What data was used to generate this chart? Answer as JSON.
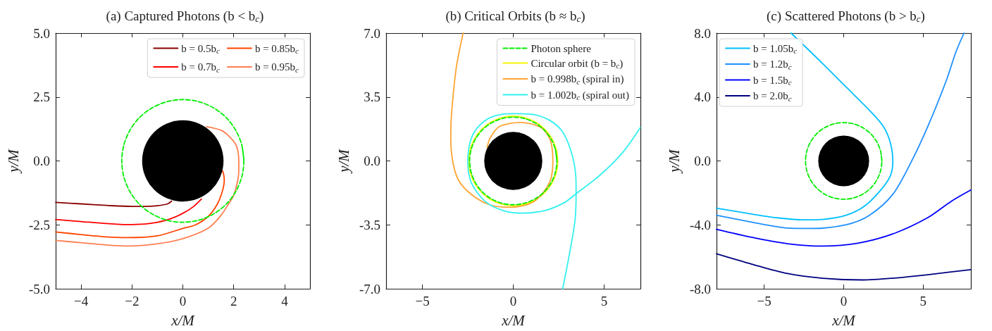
{
  "chart_data": [
    {
      "type": "line",
      "title": "(a) Captured Photons (b < b$_{c}$)",
      "xlabel": "x/M",
      "ylabel": "y/M",
      "xlim": [
        -5,
        5
      ],
      "ylim": [
        -5,
        5
      ],
      "xticks": [
        {
          "value": -4,
          "label": "−4"
        },
        {
          "value": -2,
          "label": "−2"
        },
        0,
        2,
        4
      ],
      "yticks": [
        {
          "value": -5,
          "label": "-5.0"
        },
        {
          "value": -2.5,
          "label": "-2.5"
        },
        {
          "value": 0,
          "label": "0.0"
        },
        {
          "value": 2.5,
          "label": "2.5"
        },
        {
          "value": 5,
          "label": "5.0"
        }
      ],
      "grid": false,
      "legend": "top right",
      "marker": "none",
      "series": [
        {
          "color": "#00ee00",
          "line_style": "dashed",
          "x": [
            2.4,
            2.32,
            2.08,
            1.7,
            1.2,
            0.62,
            0,
            -0.62,
            -1.2,
            -1.7,
            -2.08,
            -2.32,
            -2.4,
            -2.32,
            -2.08,
            -1.7,
            -1.2,
            -0.62,
            0,
            0.62,
            1.2,
            1.7,
            2.08,
            2.32,
            2.4,
            2.32
          ],
          "values": [
            0,
            0.62,
            1.2,
            1.7,
            2.08,
            2.32,
            2.4,
            2.32,
            2.08,
            1.7,
            1.2,
            0.62,
            0,
            -0.62,
            -1.2,
            -1.7,
            -2.08,
            -2.32,
            -2.4,
            -2.32,
            -2.08,
            -1.7,
            -1.2,
            -0.62,
            0,
            0.62
          ]
        },
        {
          "name": "b = 0.5b$_{c}$",
          "color": "#8b0000",
          "x": [
            -5,
            -4,
            -3,
            -2,
            -1.5,
            -1,
            -0.6,
            -0.44
          ],
          "values": [
            -1.62,
            -1.68,
            -1.74,
            -1.78,
            -1.78,
            -1.75,
            -1.68,
            -1.57
          ]
        },
        {
          "name": "b = 0.7b$_{c}$",
          "color": "#ff0000",
          "x": [
            -5,
            -4,
            -3,
            -2.2,
            -1.5,
            -1,
            -0.5,
            0,
            0.4,
            0.73
          ],
          "values": [
            -2.29,
            -2.37,
            -2.45,
            -2.49,
            -2.47,
            -2.4,
            -2.27,
            -2.05,
            -1.8,
            -1.49
          ]
        },
        {
          "name": "b = 0.85b$_{c}$",
          "color": "#ff4500",
          "x": [
            -5,
            -4,
            -3,
            -2.2,
            -1,
            0,
            0.5,
            1,
            1.35,
            1.55,
            1.63,
            1.6,
            1.56
          ],
          "values": [
            -2.78,
            -2.88,
            -2.97,
            -3.0,
            -2.93,
            -2.64,
            -2.5,
            -2.17,
            -1.7,
            -1.2,
            -0.76,
            -0.5,
            -0.39
          ]
        },
        {
          "name": "b = 0.95b$_{c}$",
          "color": "#ff7f50",
          "x": [
            -5,
            -4,
            -3,
            -2.2,
            -1,
            0,
            1,
            1.5,
            1.85,
            2,
            2.15,
            2.2,
            2.2,
            2.1,
            1.8,
            1.5,
            0.93
          ],
          "values": [
            -3.11,
            -3.2,
            -3.29,
            -3.33,
            -3.24,
            -3.04,
            -2.63,
            -2.13,
            -1.6,
            -1.35,
            -0.8,
            -0.39,
            0,
            0.61,
            0.98,
            1.2,
            1.34
          ]
        }
      ]
    },
    {
      "type": "line",
      "title": "(b) Critical Orbits (b ≈ b$_{c}$)",
      "xlabel": "x/M",
      "ylabel": "y/M",
      "xlim": [
        -7,
        7
      ],
      "ylim": [
        -7,
        7
      ],
      "xticks": [
        {
          "value": -5,
          "label": "−5"
        },
        0,
        5
      ],
      "yticks": [
        {
          "value": -7,
          "label": "-7.0"
        },
        {
          "value": -3.5,
          "label": "-3.5"
        },
        {
          "value": 0,
          "label": "0.0"
        },
        {
          "value": 3.5,
          "label": "3.5"
        },
        {
          "value": 7,
          "label": "7.0"
        }
      ],
      "grid": false,
      "legend": "top right",
      "marker": "none",
      "series": [
        {
          "name": "Photon sphere",
          "color": "#00ee00",
          "line_style": "dashed",
          "x": [
            2.4,
            2.32,
            2.08,
            1.7,
            1.2,
            0.62,
            0,
            -0.62,
            -1.2,
            -1.7,
            -2.08,
            -2.32,
            -2.4,
            -2.32,
            -2.08,
            -1.7,
            -1.2,
            -0.62,
            0,
            0.62,
            1.2,
            1.7,
            2.08,
            2.32,
            2.4,
            2.32
          ],
          "values": [
            0,
            0.62,
            1.2,
            1.7,
            2.08,
            2.32,
            2.4,
            2.32,
            2.08,
            1.7,
            1.2,
            0.62,
            0,
            -0.62,
            -1.2,
            -1.7,
            -2.08,
            -2.32,
            -2.4,
            -2.32,
            -2.08,
            -1.7,
            -1.2,
            -0.62,
            0,
            0.62
          ]
        },
        {
          "name": "Circular orbit (b = b$_{c}$)",
          "color": "#f5f500",
          "x": [
            2.45,
            2.37,
            2.12,
            1.73,
            1.23,
            0.63,
            0,
            -0.63,
            -1.23,
            -1.73,
            -2.12,
            -2.37,
            -2.45,
            -2.37,
            -2.12,
            -1.73,
            -1.23,
            -0.63,
            0,
            0.63,
            1.23,
            1.73,
            2.12,
            2.37,
            2.45,
            2.37
          ],
          "values": [
            0,
            0.63,
            1.23,
            1.73,
            2.12,
            2.37,
            2.45,
            2.37,
            2.12,
            1.73,
            1.23,
            0.63,
            0,
            -0.63,
            -1.23,
            -1.73,
            -2.12,
            -2.37,
            -2.45,
            -2.37,
            -2.12,
            -1.73,
            -1.23,
            -0.63,
            0,
            0.63
          ]
        },
        {
          "name": "b = 0.998b$_{c}$ (spiral in)",
          "color": "#ffa533",
          "x": [
            -2.76,
            -3.14,
            -3.4,
            -3.44,
            -3.33,
            -3.01,
            -2.31,
            -1.28,
            -0.13,
            1.15,
            1.99,
            2.18,
            2.05,
            1.54,
            0.38,
            -0.77,
            -1.28,
            -1.44
          ],
          "values": [
            7,
            5.08,
            2.52,
            1.24,
            -0.04,
            -1.06,
            -1.83,
            -2.41,
            -2.54,
            -2.22,
            -1.19,
            -0.04,
            1.11,
            1.82,
            2.11,
            1.88,
            1.24,
            0.73
          ]
        },
        {
          "name": "b = 1.002b$_{c}$ (spiral out)",
          "color": "#33f0f0",
          "x": [
            2.72,
            3.08,
            3.4,
            3.46,
            3.44,
            3.2,
            2.69,
            1.92,
            1.03,
            0,
            -1.03,
            -1.79,
            -2.31,
            -2.5,
            -2.31,
            -1.54,
            -0.51,
            0.51,
            1.79,
            2.82,
            3.44,
            4.74,
            6.03,
            6.99
          ],
          "values": [
            -7,
            -5.16,
            -3.24,
            -1.7,
            -0.81,
            0.47,
            1.63,
            2.27,
            2.55,
            2.59,
            2.46,
            2.01,
            1.24,
            0,
            -1.19,
            -2.22,
            -2.73,
            -2.86,
            -2.7,
            -2.28,
            -1.81,
            -0.81,
            0.47,
            1.82
          ]
        }
      ]
    },
    {
      "type": "line",
      "title": "(c) Scattered Photons (b > b$_{c}$)",
      "xlabel": "x/M",
      "ylabel": "y/M",
      "xlim": [
        -8,
        8
      ],
      "ylim": [
        -8,
        8
      ],
      "xticks": [
        {
          "value": -5,
          "label": "−5"
        },
        0,
        5
      ],
      "yticks": [
        {
          "value": -8,
          "label": "-8.0"
        },
        {
          "value": -4,
          "label": "-4.0"
        },
        {
          "value": 0,
          "label": "0.0"
        },
        {
          "value": 4,
          "label": "4.0"
        },
        {
          "value": 8,
          "label": "8.0"
        }
      ],
      "grid": false,
      "legend": "top left",
      "marker": "none",
      "series": [
        {
          "color": "#00ee00",
          "line_style": "dashed",
          "x": [
            2.4,
            2.32,
            2.08,
            1.7,
            1.2,
            0.62,
            0,
            -0.62,
            -1.2,
            -1.7,
            -2.08,
            -2.32,
            -2.4,
            -2.32,
            -2.08,
            -1.7,
            -1.2,
            -0.62,
            0,
            0.62,
            1.2,
            1.7,
            2.08,
            2.32,
            2.4,
            2.32
          ],
          "values": [
            0,
            0.62,
            1.2,
            1.7,
            2.08,
            2.32,
            2.4,
            2.32,
            2.08,
            1.7,
            1.2,
            0.62,
            0,
            -0.62,
            -1.2,
            -1.7,
            -2.08,
            -2.32,
            -2.4,
            -2.32,
            -2.08,
            -1.7,
            -1.2,
            -0.62,
            0,
            0.62
          ]
        },
        {
          "name": "b = 1.05b$_{c}$",
          "color": "#00bfff",
          "x": [
            -3.31,
            -1.32,
            0.15,
            1.62,
            2.5,
            2.94,
            3.09,
            2.94,
            2.35,
            1.32,
            0.15,
            -1.32,
            -2.5,
            -4.26,
            -5.74,
            -8
          ],
          "values": [
            8,
            6.09,
            4.63,
            3.17,
            2.15,
            1.12,
            -0.04,
            -0.92,
            -1.8,
            -2.82,
            -3.4,
            -3.66,
            -3.69,
            -3.55,
            -3.33,
            -2.96
          ]
        },
        {
          "name": "b = 1.2b$_{c}$",
          "color": "#1e90ff",
          "x": [
            -8,
            -5.74,
            -3.53,
            -2.06,
            0.15,
            1.62,
            3.09,
            4.26,
            5.29,
            6.47,
            7.06,
            7.57
          ],
          "values": [
            -3.4,
            -3.84,
            -4.2,
            -4.23,
            -3.99,
            -3.4,
            -2.09,
            -0.04,
            2.15,
            5.07,
            6.82,
            8
          ]
        },
        {
          "name": "b = 1.5b$_{c}$",
          "color": "#0000ff",
          "x": [
            -8,
            -5.74,
            -3.53,
            -1.32,
            0.88,
            3.09,
            5.29,
            6.76,
            8
          ],
          "values": [
            -4.28,
            -4.79,
            -5.18,
            -5.33,
            -5.15,
            -4.57,
            -3.55,
            -2.53,
            -1.82
          ]
        },
        {
          "name": "b = 2.0b$_{c}$",
          "color": "#000080",
          "x": [
            -8,
            -5.74,
            -3.53,
            -1.32,
            1.18,
            3.09,
            5.29,
            8
          ],
          "values": [
            -5.81,
            -6.47,
            -7.05,
            -7.34,
            -7.45,
            -7.34,
            -7.12,
            -6.8
          ]
        }
      ]
    }
  ]
}
